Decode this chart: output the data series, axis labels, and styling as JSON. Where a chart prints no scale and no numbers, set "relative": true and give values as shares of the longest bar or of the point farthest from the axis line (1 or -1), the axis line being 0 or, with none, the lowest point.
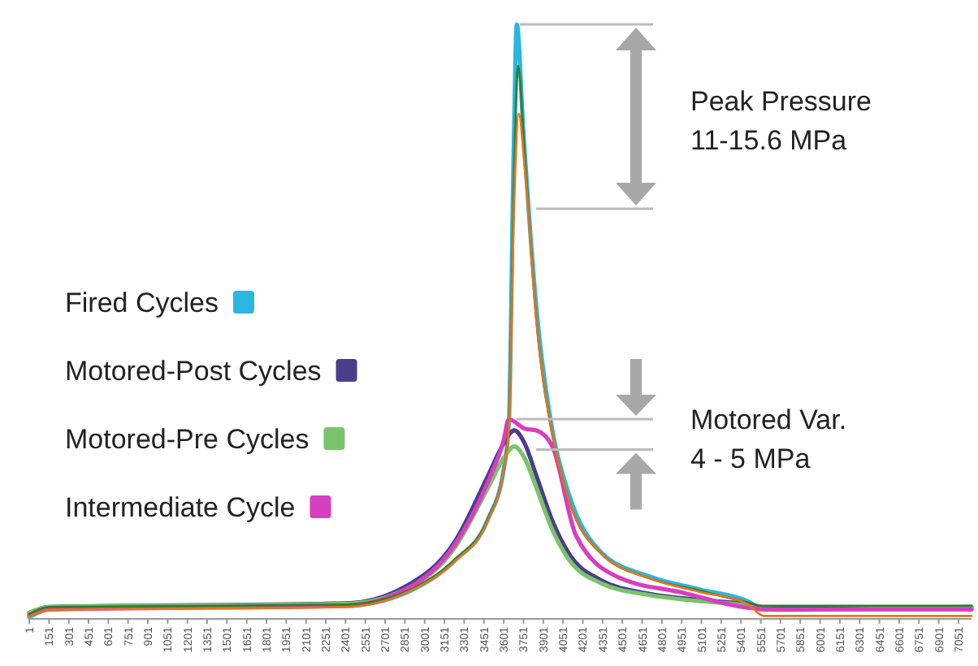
{
  "chart_data": {
    "type": "line",
    "relative": true,
    "legend": "left",
    "marker": "none",
    "line_style": "solid",
    "xlim": [
      1,
      7150
    ],
    "xticks": [
      1,
      151,
      301,
      451,
      601,
      751,
      901,
      1051,
      1201,
      1351,
      1501,
      1651,
      1801,
      1951,
      2101,
      2251,
      2401,
      2551,
      2701,
      2851,
      3001,
      3151,
      3301,
      3451,
      3601,
      3751,
      3901,
      4051,
      4201,
      4351,
      4501,
      4651,
      4801,
      4951,
      5101,
      5251,
      5401,
      5551,
      5701,
      5851,
      6001,
      6151,
      6301,
      6451,
      6601,
      6751,
      6901,
      7051
    ],
    "annotations": [
      "Peak Pressure",
      "11-15.6 MPa",
      "Motored Var.",
      "4 - 5 MPa"
    ],
    "series": [
      {
        "color": "#2e7d32",
        "x": [
          1,
          150,
          2400,
          2860,
          3230,
          3480,
          3600,
          3640,
          3680,
          3710,
          3760,
          3850,
          3970,
          4095,
          4340,
          4710,
          5080,
          5450,
          5575,
          7150
        ],
        "values": [
          0.008,
          0.02,
          0.024,
          0.046,
          0.1,
          0.168,
          0.25,
          0.33,
          0.75,
          0.93,
          0.78,
          0.5,
          0.31,
          0.2,
          0.11,
          0.068,
          0.048,
          0.028,
          0.022,
          0.022
        ]
      },
      {
        "color": "#e8731a",
        "x": [
          1,
          150,
          2400,
          2860,
          3230,
          3480,
          3600,
          3640,
          3680,
          3715,
          3760,
          3850,
          3970,
          4095,
          4340,
          4710,
          5080,
          5450,
          5575,
          7150
        ],
        "values": [
          0.004,
          0.015,
          0.02,
          0.044,
          0.097,
          0.165,
          0.25,
          0.32,
          0.7,
          0.85,
          0.76,
          0.5,
          0.31,
          0.2,
          0.11,
          0.068,
          0.046,
          0.025,
          0.005,
          0.005
        ]
      },
      {
        "name": "Fired Cycles",
        "color": "#29b6e0",
        "x": [
          1,
          150,
          1000,
          2400,
          2860,
          3230,
          3480,
          3600,
          3640,
          3675,
          3700,
          3750,
          3850,
          3970,
          4095,
          4340,
          4710,
          5080,
          5450,
          5575,
          7150
        ],
        "values": [
          0.003,
          0.016,
          0.02,
          0.022,
          0.044,
          0.098,
          0.167,
          0.25,
          0.33,
          0.77,
          1,
          0.82,
          0.52,
          0.317,
          0.21,
          0.112,
          0.071,
          0.05,
          0.03,
          0.016,
          0.016
        ]
      },
      {
        "name": "Motored-Post Cycles",
        "color": "#4a3d8c",
        "x": [
          1,
          150,
          2400,
          2860,
          3230,
          3480,
          3600,
          3680,
          3760,
          3850,
          3970,
          4095,
          4340,
          4710,
          5080,
          5450,
          5575,
          7150
        ],
        "values": [
          0.01,
          0.02,
          0.026,
          0.055,
          0.13,
          0.24,
          0.295,
          0.317,
          0.295,
          0.24,
          0.165,
          0.11,
          0.065,
          0.042,
          0.032,
          0.024,
          0.018,
          0.02
        ]
      },
      {
        "name": "Motored-Pre Cycles",
        "color": "#7ac36a",
        "x": [
          1,
          150,
          2400,
          2860,
          3230,
          3480,
          3600,
          3680,
          3760,
          3850,
          3970,
          4095,
          4340,
          4710,
          5080,
          5450,
          5575,
          7150
        ],
        "values": [
          0.01,
          0.02,
          0.025,
          0.05,
          0.12,
          0.22,
          0.27,
          0.29,
          0.27,
          0.22,
          0.15,
          0.1,
          0.06,
          0.04,
          0.03,
          0.022,
          0.015,
          0.02
        ]
      },
      {
        "name": "Intermediate Cycle",
        "color": "#d63fbf",
        "x": [
          1,
          150,
          2400,
          2860,
          3230,
          3480,
          3600,
          3640,
          3760,
          3850,
          3970,
          4150,
          4460,
          4960,
          5450,
          5700,
          7150
        ],
        "values": [
          0.006,
          0.016,
          0.022,
          0.05,
          0.125,
          0.23,
          0.3,
          0.336,
          0.32,
          0.317,
          0.29,
          0.14,
          0.071,
          0.044,
          0.019,
          0.016,
          0.016
        ]
      }
    ]
  }
}
